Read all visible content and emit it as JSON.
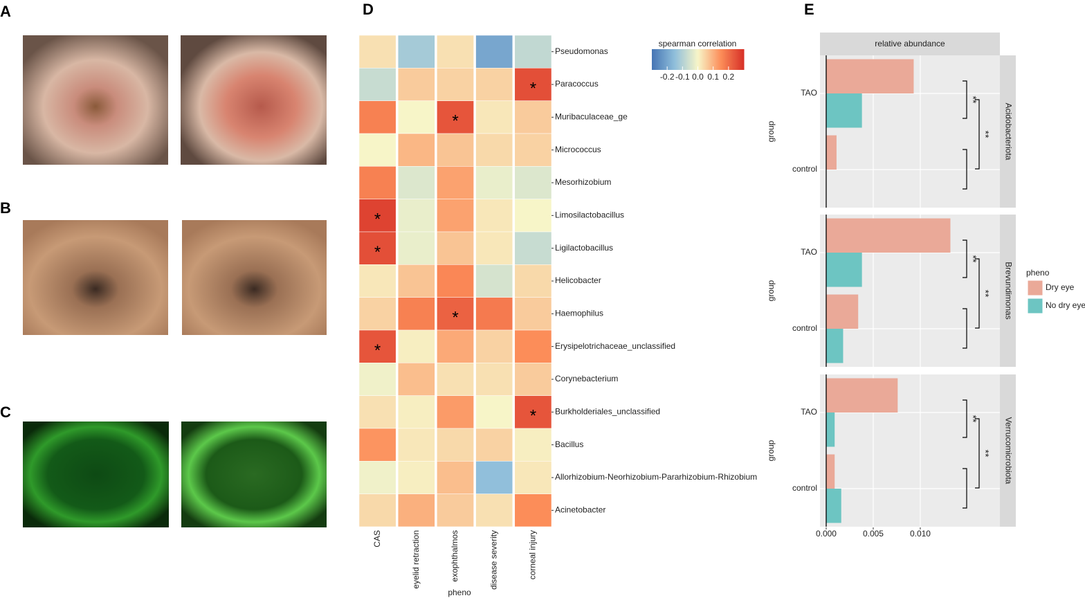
{
  "panel_labels": [
    "A",
    "B",
    "C",
    "D",
    "E"
  ],
  "chart_data": [
    {
      "type": "heatmap",
      "columns": [
        "CAS",
        "eyelid retraction",
        "exophthalmos",
        "disease severity",
        "corneal injury"
      ],
      "rows": [
        "Pseudomonas",
        "Paracoccus",
        "Muribaculaceae_ge",
        "Micrococcus",
        "Mesorhizobium",
        "Limosilactobacillus",
        "Ligilactobacillus",
        "Helicobacter",
        "Haemophilus",
        "Erysipelotrichaceae_unclassified",
        "Corynebacterium",
        "Burkholderiales_unclassified",
        "Bacillus",
        "Allorhizobium-Neorhizobium-Pararhizobium-Rhizobium",
        "Acinetobacter"
      ],
      "values": [
        [
          0.03,
          -0.12,
          0.03,
          -0.2,
          -0.08
        ],
        [
          -0.07,
          0.06,
          0.05,
          0.05,
          0.25
        ],
        [
          0.17,
          0.0,
          0.24,
          0.02,
          0.06
        ],
        [
          0.0,
          0.09,
          0.07,
          0.04,
          0.05
        ],
        [
          0.17,
          -0.04,
          0.12,
          -0.02,
          -0.04
        ],
        [
          0.27,
          -0.02,
          0.12,
          0.02,
          0.0
        ],
        [
          0.25,
          -0.02,
          0.07,
          0.02,
          -0.07
        ],
        [
          0.02,
          0.07,
          0.16,
          -0.05,
          0.04
        ],
        [
          0.05,
          0.17,
          0.22,
          0.18,
          0.06
        ],
        [
          0.24,
          0.01,
          0.11,
          0.05,
          0.15
        ],
        [
          -0.01,
          0.08,
          0.03,
          0.03,
          0.06
        ],
        [
          0.03,
          0.01,
          0.13,
          0.0,
          0.24
        ],
        [
          0.14,
          0.02,
          0.04,
          0.05,
          0.01
        ],
        [
          -0.01,
          0.01,
          0.08,
          -0.15,
          0.02
        ],
        [
          0.04,
          0.1,
          0.06,
          0.03,
          0.15
        ]
      ],
      "annotations": [
        {
          "row": 1,
          "col": 4,
          "label": "*"
        },
        {
          "row": 2,
          "col": 2,
          "label": "*"
        },
        {
          "row": 5,
          "col": 0,
          "label": "*"
        },
        {
          "row": 6,
          "col": 0,
          "label": "*"
        },
        {
          "row": 8,
          "col": 2,
          "label": "*"
        },
        {
          "row": 9,
          "col": 0,
          "label": "*"
        },
        {
          "row": 11,
          "col": 4,
          "label": "*"
        }
      ],
      "xlabel": "pheno",
      "legend_title": "spearman correlation",
      "zlim": [
        -0.3,
        0.3
      ],
      "zticks": [
        -0.2,
        -0.1,
        {
          "value": 0,
          "label": "0.0"
        },
        0.1,
        0.2
      ],
      "colorscale": [
        "#4575b4",
        "#91bfdb",
        "#f7f5c8",
        "#fc8d59",
        "#d73027"
      ]
    },
    {
      "type": "bar",
      "orientation": "horizontal",
      "strip_title": "relative abundance",
      "ylabel": "group",
      "legend_title": "pheno",
      "categories": [
        "TAO",
        "control"
      ],
      "series": [
        {
          "name": "Dry eye",
          "color": "#eaa998"
        },
        {
          "name": "No dry eye",
          "color": "#6dc5c2"
        }
      ],
      "facets": [
        {
          "name": "Acidobacteriota",
          "values": [
            [
              0.0093,
              0.0011
            ],
            [
              0.0038,
              0.0
            ]
          ],
          "annotations": [
            "**",
            "**"
          ]
        },
        {
          "name": "Brevundimonas",
          "values": [
            [
              0.0132,
              0.0034
            ],
            [
              0.0038,
              0.0018
            ]
          ],
          "annotations": [
            "**",
            "**"
          ]
        },
        {
          "name": "Verrucomicrobiota",
          "values": [
            [
              0.0076,
              0.0009
            ],
            [
              0.0009,
              0.0016
            ]
          ],
          "annotations": [
            "**",
            "**"
          ]
        }
      ],
      "xlim": [
        -0.00066,
        0.01846
      ],
      "xticks": [
        {
          "value": 0,
          "label": "0.000"
        },
        {
          "value": 0.005,
          "label": "0.005"
        },
        {
          "value": 0.01,
          "label": "0.010"
        }
      ],
      "grid": true
    }
  ]
}
